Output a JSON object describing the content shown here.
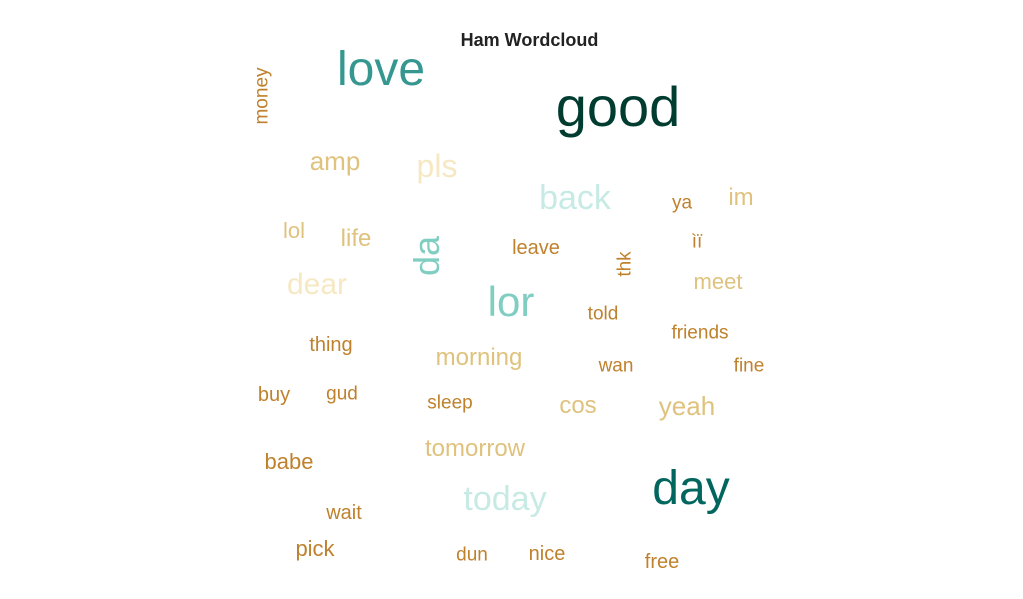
{
  "chart_data": {
    "type": "wordcloud",
    "title": "Ham Wordcloud",
    "words": [
      {
        "text": "good",
        "color": "#003c30"
      },
      {
        "text": "love",
        "color": "#35978f"
      },
      {
        "text": "day",
        "color": "#01665e"
      },
      {
        "text": "lor",
        "color": "#80cdc1"
      },
      {
        "text": "da",
        "color": "#80cdc1"
      },
      {
        "text": "back",
        "color": "#c7eae5"
      },
      {
        "text": "today",
        "color": "#c7eae5"
      },
      {
        "text": "pls",
        "color": "#f6e8c3"
      },
      {
        "text": "dear",
        "color": "#f6e8c3"
      },
      {
        "text": "amp",
        "color": "#dfc27d"
      },
      {
        "text": "morning",
        "color": "#dfc27d"
      },
      {
        "text": "tomorrow",
        "color": "#dfc27d"
      },
      {
        "text": "yeah",
        "color": "#dfc27d"
      },
      {
        "text": "cos",
        "color": "#dfc27d"
      },
      {
        "text": "meet",
        "color": "#dfc27d"
      },
      {
        "text": "im",
        "color": "#dfc27d"
      },
      {
        "text": "life",
        "color": "#dfc27d"
      },
      {
        "text": "lol",
        "color": "#dfc27d"
      },
      {
        "text": "babe",
        "color": "#bf812d"
      },
      {
        "text": "pick",
        "color": "#bf812d"
      },
      {
        "text": "thing",
        "color": "#bf812d"
      },
      {
        "text": "wait",
        "color": "#bf812d"
      },
      {
        "text": "buy",
        "color": "#bf812d"
      },
      {
        "text": "free",
        "color": "#bf812d"
      },
      {
        "text": "leave",
        "color": "#bf812d"
      },
      {
        "text": "nice",
        "color": "#bf812d"
      },
      {
        "text": "dun",
        "color": "#bf812d"
      },
      {
        "text": "sleep",
        "color": "#bf812d"
      },
      {
        "text": "gud",
        "color": "#bf812d"
      },
      {
        "text": "told",
        "color": "#bf812d"
      },
      {
        "text": "wan",
        "color": "#bf812d"
      },
      {
        "text": "friends",
        "color": "#bf812d"
      },
      {
        "text": "fine",
        "color": "#bf812d"
      },
      {
        "text": "ya",
        "color": "#bf812d"
      },
      {
        "text": "ìï",
        "color": "#bf812d"
      },
      {
        "text": "money",
        "color": "#bf812d"
      },
      {
        "text": "thk",
        "color": "#bf812d"
      }
    ]
  }
}
